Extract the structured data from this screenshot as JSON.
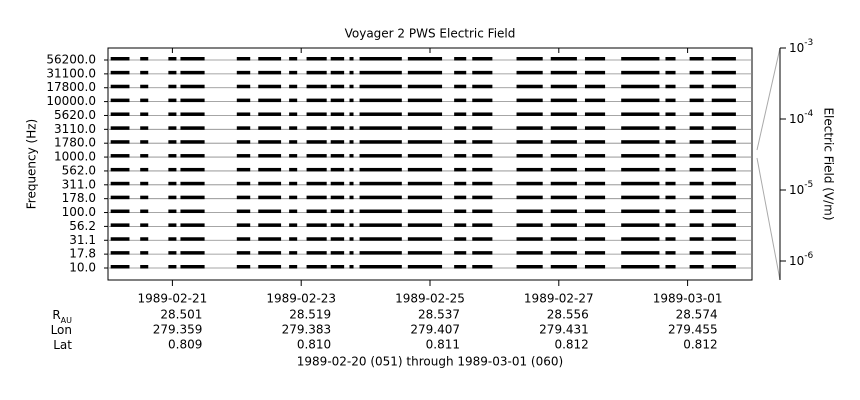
{
  "chart_data": {
    "type": "channel-strip",
    "title": "Voyager 2 PWS Electric Field",
    "ylabel": "Frequency (Hz)",
    "y2label": "Electric Field (V/m)",
    "xlabel": "1989-02-20 (051) through 1989-03-01 (060)",
    "categories": [
      "56200.0",
      "31100.0",
      "17800.0",
      "10000.0",
      "5620.0",
      "3110.0",
      "1780.0",
      "1000.0",
      "562.0",
      "311.0",
      "178.0",
      "100.0",
      "56.2",
      "31.1",
      "17.8",
      "10.0"
    ],
    "xlim": [
      "1989-02-20",
      "1989-03-02"
    ],
    "xticks": [
      "1989-02-21",
      "1989-02-23",
      "1989-02-25",
      "1989-02-27",
      "1989-03-01"
    ],
    "y2lim": [
      5.4e-07,
      0.001
    ],
    "y2scale": "log",
    "y2ticks": [
      {
        "value": 0.001,
        "label": "10",
        "exponent": "-3"
      },
      {
        "value": 0.0001,
        "label": "10",
        "exponent": "-4"
      },
      {
        "value": 1e-05,
        "label": "10",
        "exponent": "-5"
      },
      {
        "value": 1e-06,
        "label": "10",
        "exponent": "-6"
      }
    ],
    "color": "#000000",
    "segments": [
      [
        "1989-02-20T01:00",
        "1989-02-20T08:00"
      ],
      [
        "1989-02-20T12:00",
        "1989-02-20T15:00"
      ],
      [
        "1989-02-20T22:30",
        "1989-02-21T01:30"
      ],
      [
        "1989-02-21T03:00",
        "1989-02-21T12:00"
      ],
      [
        "1989-02-22T00:00",
        "1989-02-22T05:00"
      ],
      [
        "1989-02-22T08:00",
        "1989-02-22T16:30"
      ],
      [
        "1989-02-22T19:30",
        "1989-02-22T22:30"
      ],
      [
        "1989-02-23T02:00",
        "1989-02-23T09:30"
      ],
      [
        "1989-02-23T11:00",
        "1989-02-23T16:00"
      ],
      [
        "1989-02-23T18:00",
        "1989-02-23T19:30"
      ],
      [
        "1989-02-23T21:45",
        "1989-02-24T13:30"
      ],
      [
        "1989-02-24T15:45",
        "1989-02-25T04:30"
      ],
      [
        "1989-02-25T09:00",
        "1989-02-25T13:30"
      ],
      [
        "1989-02-25T15:45",
        "1989-02-25T23:15"
      ],
      [
        "1989-02-26T08:15",
        "1989-02-26T18:00"
      ],
      [
        "1989-02-26T21:00",
        "1989-02-27T06:45"
      ],
      [
        "1989-02-27T09:45",
        "1989-02-27T17:15"
      ],
      [
        "1989-02-27T23:15",
        "1989-02-28T13:30"
      ],
      [
        "1989-02-28T15:45",
        "1989-02-28T19:30"
      ],
      [
        "1989-03-01T00:45",
        "1989-03-01T06:00"
      ],
      [
        "1989-03-01T09:00",
        "1989-03-01T18:00"
      ]
    ],
    "ephemeris": [
      {
        "label": "R",
        "sub": "AU",
        "values": [
          "28.501",
          "28.519",
          "28.537",
          "28.556",
          "28.574"
        ]
      },
      {
        "label": "Lon",
        "values": [
          "279.359",
          "279.383",
          "279.407",
          "279.431",
          "279.455"
        ]
      },
      {
        "label": "Lat",
        "values": [
          "0.809",
          "0.810",
          "0.811",
          "0.812",
          "0.812"
        ]
      }
    ]
  }
}
